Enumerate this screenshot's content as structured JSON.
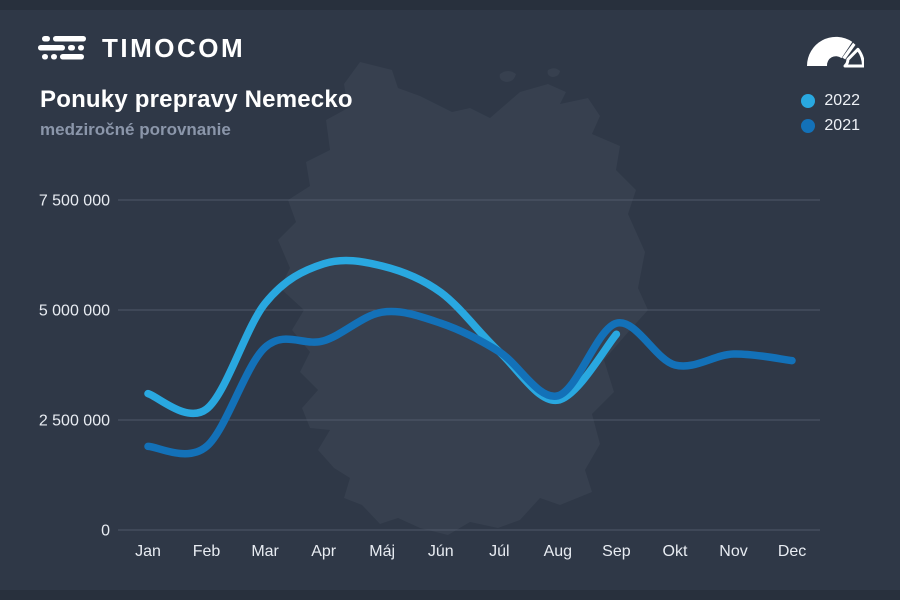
{
  "brand": {
    "logo_text": "TIMOCOM",
    "logo_icon": "speed-lines-icon",
    "gauge_icon": "speedometer-icon"
  },
  "header": {
    "title": "Ponuky prepravy Nemecko",
    "subtitle": "medziročné porovnanie"
  },
  "colors": {
    "background": "#2f3847",
    "edge_band": "#28303d",
    "map_fill": "#37404f",
    "grid_line": "#5a6375",
    "axis_label": "#e8ecf2",
    "title": "#ffffff",
    "subtitle": "#8b96aa",
    "legend_text": "#eef1f6",
    "series_2022": "#29a8e0",
    "series_2021": "#1371b8"
  },
  "chart_data": {
    "type": "line",
    "title": "Ponuky prepravy Nemecko",
    "subtitle": "medziročné porovnanie",
    "categories": [
      "Jan",
      "Feb",
      "Mar",
      "Apr",
      "Máj",
      "Jún",
      "Júl",
      "Aug",
      "Sep",
      "Okt",
      "Nov",
      "Dec"
    ],
    "series": [
      {
        "name": "2022",
        "color": "#29a8e0",
        "values": [
          3100000,
          2750000,
          5150000,
          6050000,
          6000000,
          5400000,
          4050000,
          2950000,
          4450000
        ]
      },
      {
        "name": "2021",
        "color": "#1371b8",
        "values": [
          1900000,
          1900000,
          4150000,
          4300000,
          4950000,
          4700000,
          4050000,
          3050000,
          4700000,
          3750000,
          4000000,
          3850000
        ]
      }
    ],
    "ylim": [
      0,
      7500000
    ],
    "yticks": [
      {
        "value": 0,
        "label": "0"
      },
      {
        "value": 2500000,
        "label": "2 500 000"
      },
      {
        "value": 5000000,
        "label": "5 000 000"
      },
      {
        "value": 7500000,
        "label": "7 500 000"
      }
    ],
    "grid": "horizontal",
    "legend_position": "top-right",
    "note": "2022 series plotted Jan–Sep only; 2021 full year"
  }
}
